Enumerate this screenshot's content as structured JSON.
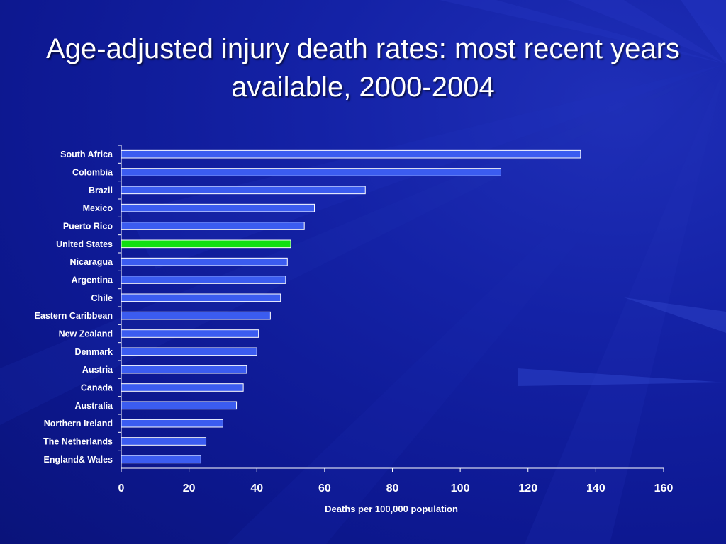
{
  "slide": {
    "title": "Age-adjusted injury death rates: most recent years available, 2000-2004"
  },
  "colors": {
    "background": "#0d1891",
    "bar": "#3b5cf0",
    "bar_highlight": "#11e011",
    "bar_border": "#ffffff",
    "axis": "#ffffff",
    "text": "#ffffff"
  },
  "chart_data": {
    "type": "bar",
    "orientation": "horizontal",
    "title": "Age-adjusted injury death rates: most recent years available, 2000-2004",
    "xlabel": "Deaths per 100,000 population",
    "ylabel": "",
    "xlim": [
      0,
      160
    ],
    "xticks": [
      0,
      20,
      40,
      60,
      80,
      100,
      120,
      140,
      160
    ],
    "grid": false,
    "legend": "none",
    "categories": [
      "South Africa",
      "Colombia",
      "Brazil",
      "Mexico",
      "Puerto Rico",
      "United States",
      "Nicaragua",
      "Argentina",
      "Chile",
      "Eastern Caribbean",
      "New Zealand",
      "Denmark",
      "Austria",
      "Canada",
      "Australia",
      "Northern Ireland",
      "The Netherlands",
      "England& Wales"
    ],
    "values": [
      135.5,
      112,
      72,
      57,
      54,
      50,
      49,
      48.5,
      47,
      44,
      40.5,
      40,
      37,
      36,
      34,
      30,
      25,
      23.5
    ],
    "highlight_category": "United States"
  }
}
